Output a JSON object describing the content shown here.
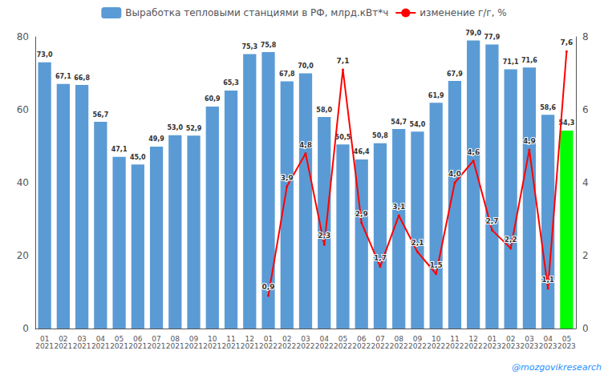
{
  "chart_data": {
    "type": "bar",
    "categories": [
      "01\n2021",
      "02\n2021",
      "03\n2021",
      "04\n2021",
      "05\n2021",
      "06\n2021",
      "07\n2021",
      "08\n2021",
      "09\n2021",
      "10\n2021",
      "11\n2021",
      "12\n2021",
      "01\n2022",
      "02\n2022",
      "03\n2022",
      "04\n2022",
      "05\n2022",
      "06\n2022",
      "07\n2022",
      "08\n2022",
      "09\n2022",
      "10\n2022",
      "11\n2022",
      "12\n2022",
      "01\n2023",
      "02\n2023",
      "03\n2023",
      "04\n2023",
      "05\n2023"
    ],
    "series": [
      {
        "name": "Выработка тепловыми станциями в РФ, млрд.кВт*ч",
        "type": "bar",
        "colors": [
          "#5B9BD5",
          "#5B9BD5",
          "#5B9BD5",
          "#5B9BD5",
          "#5B9BD5",
          "#5B9BD5",
          "#5B9BD5",
          "#5B9BD5",
          "#5B9BD5",
          "#5B9BD5",
          "#5B9BD5",
          "#5B9BD5",
          "#5B9BD5",
          "#5B9BD5",
          "#5B9BD5",
          "#5B9BD5",
          "#5B9BD5",
          "#5B9BD5",
          "#5B9BD5",
          "#5B9BD5",
          "#5B9BD5",
          "#5B9BD5",
          "#5B9BD5",
          "#5B9BD5",
          "#5B9BD5",
          "#5B9BD5",
          "#5B9BD5",
          "#5B9BD5",
          "#00FF00"
        ],
        "values": [
          73.0,
          67.1,
          66.8,
          56.7,
          47.1,
          45.0,
          49.9,
          53.0,
          52.9,
          60.9,
          65.3,
          75.3,
          75.8,
          67.8,
          70.0,
          58.0,
          50.5,
          46.4,
          50.8,
          54.7,
          54.0,
          61.9,
          67.9,
          79.0,
          77.9,
          71.1,
          71.6,
          58.6,
          54.3
        ],
        "value_labels": [
          "73,0",
          "67,1",
          "66,8",
          "56,7",
          "47,1",
          "45,0",
          "49,9",
          "53,0",
          "52,9",
          "60,9",
          "65,3",
          "75,3",
          "75,8",
          "67,8",
          "70,0",
          "58,0",
          "50,5",
          "46,4",
          "50,8",
          "54,7",
          "54,0",
          "61,9",
          "67,9",
          "79,0",
          "77,9",
          "71,1",
          "71,6",
          "58,6",
          "54,3"
        ]
      },
      {
        "name": "изменение г/г, %",
        "type": "line",
        "color": "#FF0000",
        "axis": "y2",
        "values": [
          null,
          null,
          null,
          null,
          null,
          null,
          null,
          null,
          null,
          null,
          null,
          null,
          0.9,
          3.9,
          4.8,
          2.3,
          7.1,
          2.9,
          1.7,
          3.1,
          2.1,
          1.5,
          4.0,
          4.6,
          2.7,
          2.2,
          4.9,
          1.1,
          7.6
        ],
        "value_labels": [
          null,
          null,
          null,
          null,
          null,
          null,
          null,
          null,
          null,
          null,
          null,
          null,
          "0,9",
          "3,9",
          "4,8",
          "2,3",
          "7,1",
          "2,9",
          "1,7",
          "3,1",
          "2,1",
          "1,5",
          "4,0",
          "4,6",
          "2,7",
          "2,2",
          "4,9",
          "1,1",
          "7,6"
        ]
      }
    ],
    "ylim": [
      0,
      80
    ],
    "yticks": [
      0,
      20,
      40,
      60,
      80
    ],
    "y2lim": [
      0,
      8.0
    ],
    "y2ticks": [
      0,
      2,
      4,
      6,
      8
    ],
    "grid": false,
    "legend": "top",
    "data_labels": true,
    "annotations": [
      "@mozgovikresearch"
    ]
  }
}
